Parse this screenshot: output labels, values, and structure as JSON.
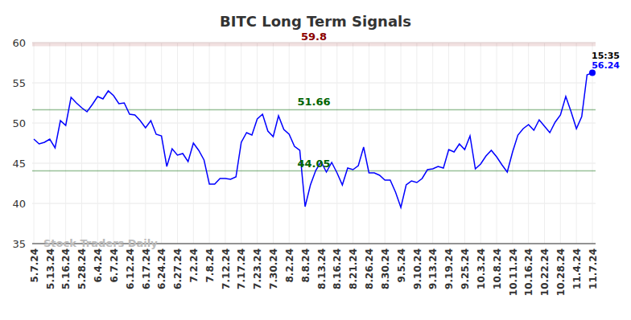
{
  "chart_data": {
    "type": "line",
    "title": "BITC Long Term Signals",
    "watermark": "Stock Traders Daily",
    "time_label": "15:35",
    "color": "#0000ff",
    "grid": true,
    "categories": [
      "5.7.24",
      null,
      null,
      "5.13.24",
      null,
      null,
      "5.16.24",
      null,
      null,
      "5.28.24",
      null,
      null,
      "6.4.24",
      null,
      null,
      "6.7.24",
      null,
      null,
      "6.12.24",
      null,
      null,
      "6.17.24",
      null,
      null,
      "6.24.24",
      null,
      null,
      "6.27.24",
      null,
      null,
      "7.2.24",
      null,
      null,
      "7.8.24",
      null,
      null,
      "7.12.24",
      null,
      null,
      "7.17.24",
      null,
      null,
      "7.23.24",
      null,
      null,
      "7.30.24",
      null,
      null,
      "8.2.24",
      null,
      null,
      "8.8.24",
      null,
      null,
      "8.13.24",
      null,
      null,
      "8.16.24",
      null,
      null,
      "8.21.24",
      null,
      null,
      "8.26.24",
      null,
      null,
      "8.30.24",
      null,
      null,
      "9.5.24",
      null,
      null,
      "9.10.24",
      null,
      null,
      "9.13.24",
      null,
      null,
      "9.19.24",
      null,
      null,
      "9.25.24",
      null,
      null,
      "10.3.24",
      null,
      null,
      "10.8.24",
      null,
      null,
      "10.11.24",
      null,
      null,
      "10.16.24",
      null,
      null,
      "10.22.24",
      null,
      null,
      "10.28.24",
      null,
      null,
      "11.4.24",
      null,
      null,
      "11.7.24"
    ],
    "values": [
      48.0,
      47.4,
      47.6,
      48.0,
      46.9,
      50.3,
      49.7,
      53.2,
      52.5,
      51.9,
      51.4,
      52.3,
      53.3,
      53.0,
      54.0,
      53.4,
      52.4,
      52.5,
      51.1,
      51.0,
      50.3,
      49.4,
      50.3,
      48.6,
      48.4,
      44.6,
      46.8,
      46.0,
      46.2,
      45.2,
      47.5,
      46.6,
      45.4,
      42.4,
      42.4,
      43.1,
      43.1,
      43.0,
      43.3,
      47.6,
      48.8,
      48.5,
      50.5,
      51.1,
      49.0,
      48.3,
      50.9,
      49.2,
      48.6,
      47.1,
      46.6,
      39.6,
      42.3,
      44.1,
      45.2,
      43.9,
      45.1,
      43.8,
      42.3,
      44.4,
      44.2,
      44.7,
      47.0,
      43.8,
      43.8,
      43.5,
      42.9,
      42.9,
      41.4,
      39.5,
      42.3,
      42.8,
      42.6,
      43.1,
      44.2,
      44.3,
      44.6,
      44.4,
      46.7,
      46.4,
      47.4,
      46.7,
      48.4,
      44.3,
      44.9,
      45.9,
      46.6,
      45.8,
      44.8,
      43.9,
      46.4,
      48.5,
      49.3,
      49.8,
      49.1,
      50.4,
      49.6,
      48.8,
      50.1,
      51.0,
      53.3,
      51.4,
      49.3,
      50.8,
      56.0,
      56.24
    ],
    "ylim": [
      35,
      60
    ],
    "yticks": [
      35,
      40,
      45,
      50,
      55,
      60
    ],
    "reference_lines": [
      {
        "value": 59.8,
        "color": "#8b0000"
      },
      {
        "value": 51.66,
        "color": "#006400"
      },
      {
        "value": 44.05,
        "color": "#006400"
      }
    ]
  }
}
